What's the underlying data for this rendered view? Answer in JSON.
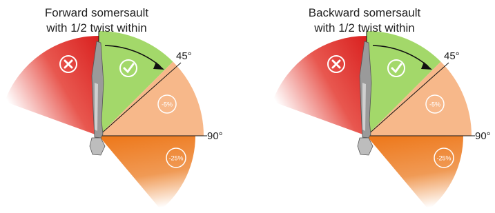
{
  "panels": [
    {
      "title_line1": "Forward somersault",
      "title_line2": "with 1/2 twist within",
      "angle_45": "45°",
      "angle_90": "90°",
      "penalty_small": "-5%",
      "penalty_large": "-25%"
    },
    {
      "title_line1": "Backward somersault",
      "title_line2": "with 1/2 twist within",
      "angle_45": "45°",
      "angle_90": "90°",
      "penalty_small": "-5%",
      "penalty_large": "-25%"
    }
  ]
}
